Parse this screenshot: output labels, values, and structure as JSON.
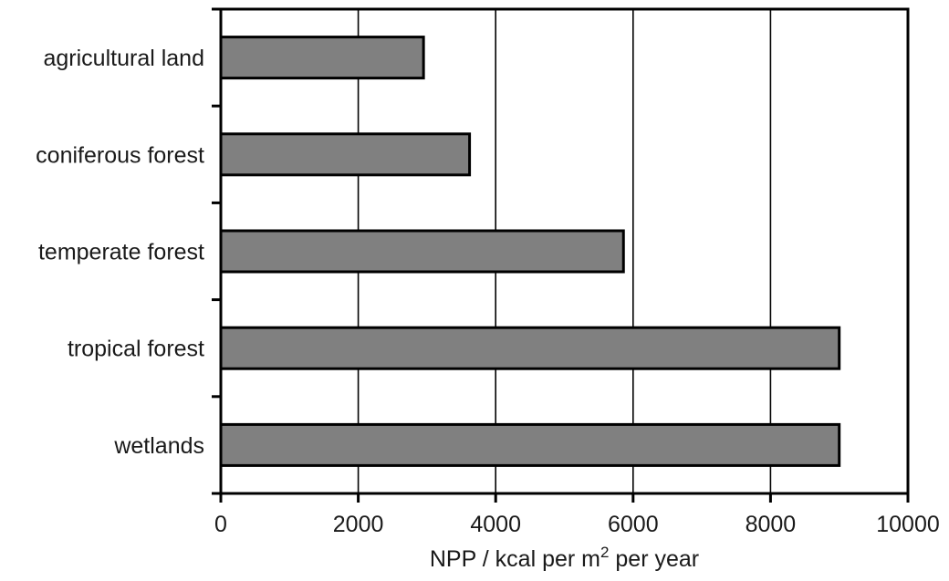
{
  "chart_data": {
    "type": "bar",
    "orientation": "horizontal",
    "categories": [
      "agricultural land",
      "coniferous forest",
      "temperate forest",
      "tropical forest",
      "wetlands"
    ],
    "values": [
      2950,
      3620,
      5860,
      9000,
      9000
    ],
    "xlabel_main": "NPP / kcal per m",
    "xlabel_sup": "2",
    "xlabel_tail": " per year",
    "xlim": [
      0,
      10000
    ],
    "xticks": [
      0,
      2000,
      4000,
      6000,
      8000,
      10000
    ],
    "grid": "vertical",
    "bar_color": "#808080"
  }
}
